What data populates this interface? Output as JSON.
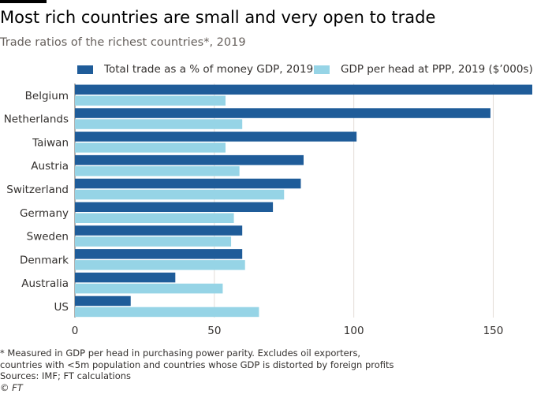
{
  "title": "Most rich countries are small and very open to trade",
  "subtitle": "Trade ratios of the richest countries*, 2019",
  "colors": {
    "series1": "#1f5c99",
    "series2": "#96d4e6",
    "grid": "#e3ddd8",
    "axis": "#66605c"
  },
  "footnote": {
    "line1": "* Measured in GDP per head in purchasing power parity. Excludes oil exporters,",
    "line2": "countries with <5m population and countries whose GDP is distorted by foreign profits",
    "sources": "Sources: IMF; FT calculations",
    "credit": "© FT"
  },
  "chart_data": {
    "type": "bar",
    "orientation": "horizontal",
    "title": "Most rich countries are small and very open to trade",
    "subtitle": "Trade ratios of the richest countries*, 2019",
    "categories": [
      "Belgium",
      "Netherlands",
      "Taiwan",
      "Austria",
      "Switzerland",
      "Germany",
      "Sweden",
      "Denmark",
      "Australia",
      "US"
    ],
    "series": [
      {
        "name": "Total trade as a % of money GDP, 2019",
        "color": "#1f5c99",
        "values": [
          164,
          149,
          101,
          82,
          81,
          71,
          60,
          60,
          36,
          20
        ]
      },
      {
        "name": "GDP per head at PPP, 2019 ($’000s)",
        "color": "#96d4e6",
        "values": [
          54,
          60,
          54,
          59,
          75,
          57,
          56,
          61,
          53,
          66
        ]
      }
    ],
    "xlim": [
      0,
      164
    ],
    "xticks": [
      0,
      50,
      100,
      150
    ],
    "grid": true,
    "legend": "top"
  }
}
